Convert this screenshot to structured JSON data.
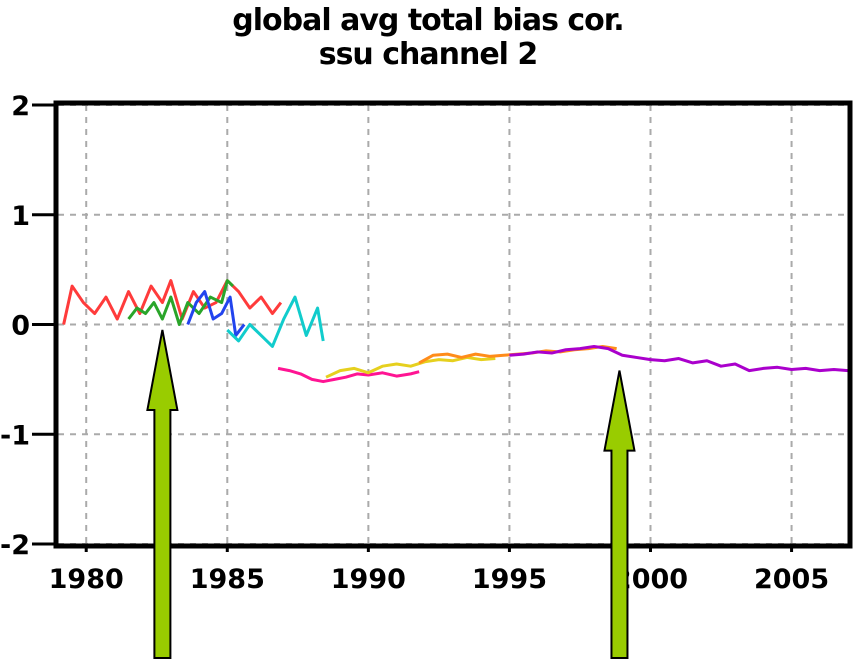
{
  "chart_data": {
    "type": "line",
    "title": [
      "global avg total bias cor.",
      "ssu channel 2"
    ],
    "xlabel": "",
    "ylabel": "",
    "xlim": [
      1979,
      2007
    ],
    "ylim": [
      -2,
      2
    ],
    "x_ticks": [
      1980,
      1985,
      1990,
      1995,
      2000,
      2005
    ],
    "x_tick_labels": [
      "1980",
      "1985",
      "1990",
      "1995",
      "2000",
      "2005"
    ],
    "y_ticks": [
      2,
      1,
      0,
      -1,
      -2
    ],
    "y_tick_labels": [
      "2",
      "1",
      "0",
      "-1",
      "-2"
    ],
    "grid": true,
    "legend": "none",
    "series": [
      {
        "color": "#ff3b3b",
        "x": [
          1979.2,
          1979.5,
          1979.9,
          1980.3,
          1980.7,
          1981.1,
          1981.5,
          1981.9,
          1982.3,
          1982.7,
          1983.0,
          1983.4,
          1983.8,
          1984.2,
          1984.6,
          1985.0,
          1985.4,
          1985.8,
          1986.2,
          1986.6,
          1986.9
        ],
        "y": [
          0.0,
          0.35,
          0.2,
          0.1,
          0.25,
          0.05,
          0.3,
          0.1,
          0.35,
          0.2,
          0.4,
          0.05,
          0.3,
          0.15,
          0.2,
          0.4,
          0.3,
          0.15,
          0.25,
          0.1,
          0.2
        ]
      },
      {
        "color": "#2aa52a",
        "x": [
          1981.5,
          1981.8,
          1982.1,
          1982.4,
          1982.7,
          1983.0,
          1983.3,
          1983.6,
          1984.0,
          1984.4,
          1984.8,
          1985.0,
          1985.2
        ],
        "y": [
          0.05,
          0.15,
          0.1,
          0.2,
          0.05,
          0.25,
          0.0,
          0.2,
          0.1,
          0.25,
          0.2,
          0.4,
          0.35
        ]
      },
      {
        "color": "#2244ee",
        "x": [
          1983.6,
          1983.9,
          1984.2,
          1984.5,
          1984.8,
          1985.1,
          1985.3,
          1985.6
        ],
        "y": [
          0.0,
          0.2,
          0.3,
          0.05,
          0.1,
          0.25,
          -0.1,
          0.0
        ]
      },
      {
        "color": "#11cccc",
        "x": [
          1985.0,
          1985.4,
          1985.8,
          1986.2,
          1986.6,
          1987.0,
          1987.4,
          1987.8,
          1988.2,
          1988.4
        ],
        "y": [
          -0.05,
          -0.15,
          0.0,
          -0.1,
          -0.2,
          0.05,
          0.25,
          -0.1,
          0.15,
          -0.15
        ]
      },
      {
        "color": "#ff1493",
        "x": [
          1986.8,
          1987.2,
          1987.6,
          1988.0,
          1988.4,
          1988.8,
          1989.2,
          1989.6,
          1990.0,
          1990.5,
          1991.0,
          1991.5,
          1991.8
        ],
        "y": [
          -0.4,
          -0.42,
          -0.45,
          -0.5,
          -0.52,
          -0.5,
          -0.48,
          -0.45,
          -0.46,
          -0.44,
          -0.47,
          -0.45,
          -0.43
        ]
      },
      {
        "color": "#e6d01e",
        "x": [
          1988.5,
          1989.0,
          1989.5,
          1990.0,
          1990.5,
          1991.0,
          1991.5,
          1992.0,
          1992.5,
          1993.0,
          1993.5,
          1994.0,
          1994.5
        ],
        "y": [
          -0.48,
          -0.42,
          -0.4,
          -0.44,
          -0.38,
          -0.36,
          -0.38,
          -0.34,
          -0.32,
          -0.33,
          -0.3,
          -0.32,
          -0.31
        ]
      },
      {
        "color": "#ff8c1a",
        "x": [
          1991.8,
          1992.3,
          1992.8,
          1993.3,
          1993.8,
          1994.3,
          1994.8,
          1995.3,
          1995.8,
          1996.3,
          1996.8,
          1997.3,
          1997.8,
          1998.3,
          1998.8
        ],
        "y": [
          -0.35,
          -0.28,
          -0.27,
          -0.3,
          -0.27,
          -0.29,
          -0.28,
          -0.27,
          -0.26,
          -0.24,
          -0.25,
          -0.23,
          -0.22,
          -0.2,
          -0.22
        ]
      },
      {
        "color": "#aa00cc",
        "x": [
          1995.0,
          1995.5,
          1996.0,
          1996.5,
          1997.0,
          1997.5,
          1998.0,
          1998.5,
          1999.0,
          1999.5,
          2000.0,
          2000.5,
          2001.0,
          2001.5,
          2002.0,
          2002.5,
          2003.0,
          2003.5,
          2004.0,
          2004.5,
          2005.0,
          2005.5,
          2006.0,
          2006.5,
          2007.0
        ],
        "y": [
          -0.28,
          -0.27,
          -0.25,
          -0.26,
          -0.23,
          -0.22,
          -0.2,
          -0.22,
          -0.28,
          -0.3,
          -0.32,
          -0.33,
          -0.31,
          -0.35,
          -0.33,
          -0.38,
          -0.36,
          -0.42,
          -0.4,
          -0.39,
          -0.41,
          -0.4,
          -0.42,
          -0.41,
          -0.42
        ]
      }
    ],
    "annotations": [
      {
        "type": "arrow",
        "color": "#99cc00",
        "direction": "up",
        "x": 1982.7,
        "y_tip": -0.05
      },
      {
        "type": "arrow",
        "color": "#99cc00",
        "direction": "up",
        "x": 1998.9,
        "y_tip": -0.42
      }
    ]
  }
}
